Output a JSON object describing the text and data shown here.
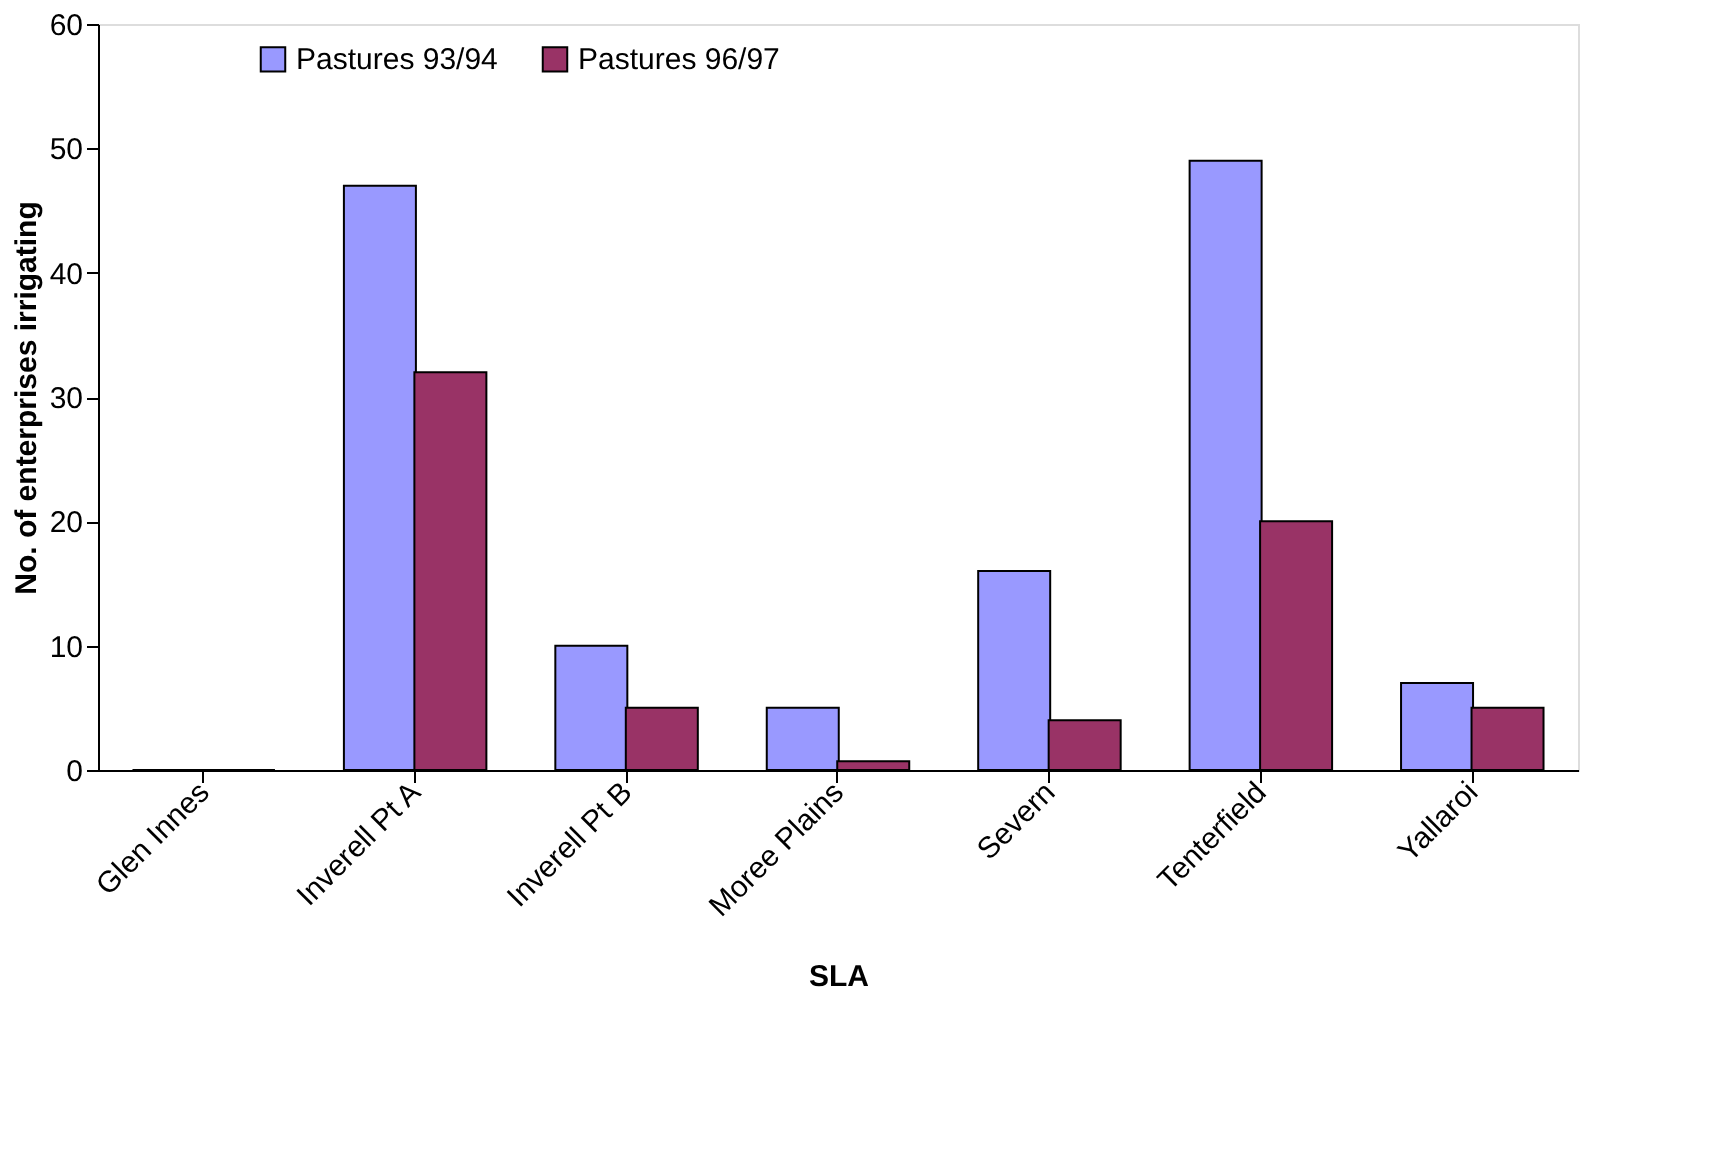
{
  "chart_data": {
    "type": "bar",
    "xlabel": "SLA",
    "ylabel": "No. of enterprises irrigating",
    "categories": [
      "Glen Innes",
      "Inverell Pt A",
      "Inverell Pt B",
      "Moree Plains",
      "Severn",
      "Tenterfield",
      "Yallaroi"
    ],
    "series": [
      {
        "name": "Pastures 93/94",
        "color": "#9999ff",
        "values": [
          0,
          47,
          10,
          5,
          16,
          49,
          7
        ]
      },
      {
        "name": "Pastures 96/97",
        "color": "#993366",
        "values": [
          0,
          32,
          5,
          0.7,
          4,
          20,
          5
        ]
      }
    ],
    "ylim": [
      0,
      60
    ],
    "yticks": [
      0,
      10,
      20,
      30,
      40,
      50,
      60
    ],
    "grid": false,
    "legend": "top"
  }
}
